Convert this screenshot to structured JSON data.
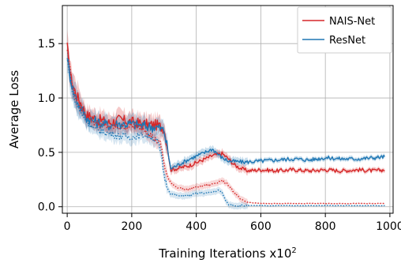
{
  "chart_data": {
    "type": "line",
    "xlabel": "Training Iterations x10",
    "xlabel_superscript": "2",
    "ylabel": "Average Loss",
    "xlim": [
      -15,
      1010
    ],
    "ylim": [
      -0.06,
      1.85
    ],
    "x_ticks": [
      0,
      200,
      400,
      600,
      800,
      1000
    ],
    "y_ticks": [
      0.0,
      0.5,
      1.0,
      1.5
    ],
    "y_tick_labels": [
      "0.0",
      "0.5",
      "1.0",
      "1.5"
    ],
    "grid": true,
    "legend_position": "top-right",
    "series": [
      {
        "name": "NAIS-Net",
        "color": "#d62728",
        "style": "solid",
        "x": [
          0,
          10,
          20,
          30,
          40,
          60,
          80,
          100,
          130,
          160,
          200,
          240,
          280,
          300,
          310,
          320,
          340,
          380,
          420,
          450,
          480,
          500,
          520,
          540,
          560,
          600,
          650,
          700,
          750,
          800,
          850,
          900,
          950,
          985
        ],
        "y": [
          1.47,
          1.2,
          1.1,
          1.02,
          0.97,
          0.84,
          0.82,
          0.8,
          0.77,
          0.8,
          0.78,
          0.76,
          0.75,
          0.72,
          0.56,
          0.34,
          0.35,
          0.38,
          0.43,
          0.47,
          0.49,
          0.44,
          0.38,
          0.35,
          0.33,
          0.34,
          0.33,
          0.34,
          0.33,
          0.34,
          0.33,
          0.34,
          0.33,
          0.34
        ]
      },
      {
        "name": "ResNet",
        "color": "#1f77b4",
        "style": "solid",
        "x": [
          0,
          10,
          20,
          30,
          40,
          60,
          80,
          100,
          130,
          160,
          200,
          240,
          280,
          300,
          310,
          320,
          340,
          380,
          420,
          450,
          480,
          500,
          550,
          600,
          650,
          700,
          750,
          800,
          850,
          900,
          950,
          985
        ],
        "y": [
          1.38,
          1.18,
          1.06,
          0.98,
          0.92,
          0.82,
          0.79,
          0.77,
          0.75,
          0.76,
          0.76,
          0.74,
          0.73,
          0.7,
          0.55,
          0.35,
          0.38,
          0.44,
          0.49,
          0.53,
          0.45,
          0.42,
          0.41,
          0.42,
          0.43,
          0.44,
          0.43,
          0.45,
          0.44,
          0.44,
          0.45,
          0.46
        ]
      },
      {
        "color": "#d62728",
        "style": "dotted",
        "x": [
          0,
          20,
          40,
          80,
          120,
          160,
          200,
          240,
          270,
          290,
          300,
          310,
          320,
          340,
          370,
          400,
          440,
          480,
          500,
          520,
          540,
          560,
          600,
          700,
          800,
          900,
          985
        ],
        "y": [
          1.45,
          1.05,
          0.92,
          0.78,
          0.74,
          0.73,
          0.74,
          0.72,
          0.62,
          0.58,
          0.4,
          0.28,
          0.22,
          0.18,
          0.16,
          0.18,
          0.2,
          0.24,
          0.2,
          0.12,
          0.06,
          0.04,
          0.03,
          0.03,
          0.03,
          0.03,
          0.03
        ]
      },
      {
        "color": "#1f77b4",
        "style": "dotted",
        "x": [
          0,
          20,
          40,
          80,
          120,
          160,
          200,
          240,
          260,
          280,
          290,
          300,
          310,
          320,
          340,
          370,
          400,
          440,
          470,
          480,
          490,
          500,
          520,
          560,
          600,
          700,
          800,
          900,
          985
        ],
        "y": [
          1.36,
          1.0,
          0.87,
          0.72,
          0.68,
          0.65,
          0.64,
          0.66,
          0.64,
          0.6,
          0.5,
          0.3,
          0.18,
          0.12,
          0.1,
          0.1,
          0.12,
          0.13,
          0.15,
          0.13,
          0.06,
          0.02,
          0.01,
          0.01,
          0.01,
          0.01,
          0.01,
          0.01,
          0.01
        ]
      }
    ]
  }
}
